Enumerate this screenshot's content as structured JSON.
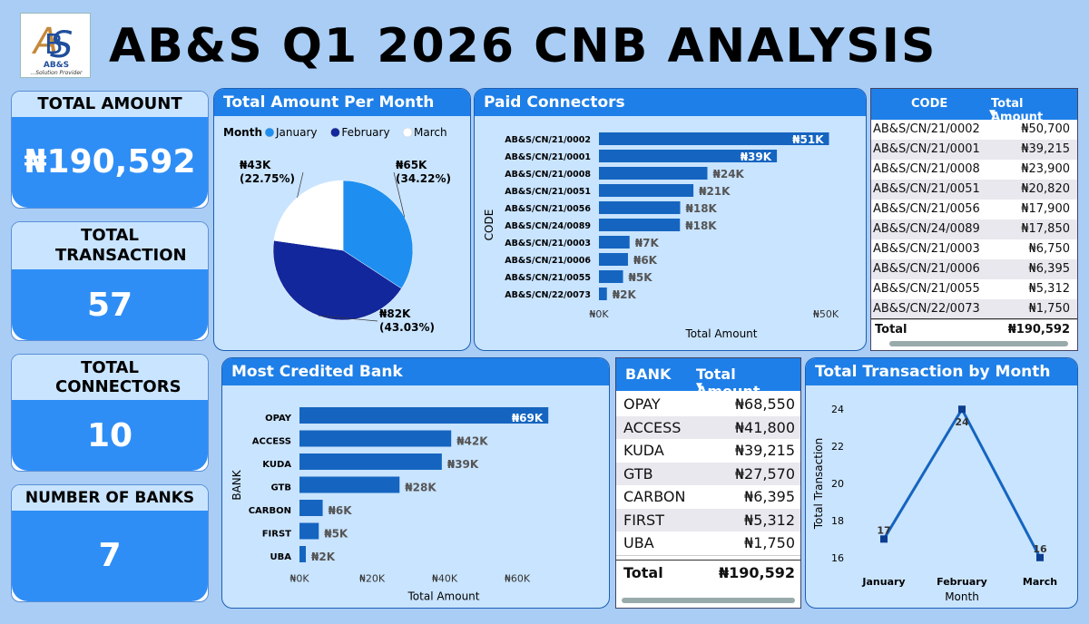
{
  "header": {
    "title": "AB&S Q1 2026 CNB ANALYSIS",
    "logo_text": "AB&S",
    "logo_tagline": "...Solution Provider"
  },
  "kpis": [
    {
      "label": "TOTAL AMOUNT",
      "value": "₦190,592"
    },
    {
      "label": "TOTAL TRANSACTION",
      "value": "57"
    },
    {
      "label": "TOTAL CONNECTORS",
      "value": "10"
    },
    {
      "label": "NUMBER OF BANKS",
      "value": "7"
    }
  ],
  "colors": {
    "january": "#1e8ff0",
    "february": "#13279c",
    "march": "#ffffff",
    "bar": "#1565c0",
    "accent": "#1e7fe8"
  },
  "chart_data": [
    {
      "type": "pie",
      "title": "Total Amount Per Month",
      "legend_title": "Month",
      "categories": [
        "January",
        "February",
        "March"
      ],
      "values": [
        65223,
        82011,
        43358
      ],
      "data_labels": [
        "₦65K (34.22%)",
        "₦82K (43.03%)",
        "₦43K (22.75%)"
      ],
      "legend_position": "top-left"
    },
    {
      "type": "bar",
      "orientation": "horizontal",
      "title": "Paid Connectors",
      "ylabel": "CODE",
      "xlabel": "Total Amount",
      "categories": [
        "AB&S/CN/21/0002",
        "AB&S/CN/21/0001",
        "AB&S/CN/21/0008",
        "AB&S/CN/21/0051",
        "AB&S/CN/21/0056",
        "AB&S/CN/24/0089",
        "AB&S/CN/21/0003",
        "AB&S/CN/21/0006",
        "AB&S/CN/21/0055",
        "AB&S/CN/22/0073"
      ],
      "values": [
        50700,
        39215,
        23900,
        20820,
        17900,
        17850,
        6750,
        6395,
        5312,
        1750
      ],
      "data_labels": [
        "₦51K",
        "₦39K",
        "₦24K",
        "₦21K",
        "₦18K",
        "₦18K",
        "₦7K",
        "₦6K",
        "₦5K",
        "₦2K"
      ],
      "xticks": [
        "₦0K",
        "₦50K"
      ],
      "xlim": [
        0,
        55000
      ]
    },
    {
      "type": "bar",
      "orientation": "horizontal",
      "title": "Most Credited Bank",
      "ylabel": "BANK",
      "xlabel": "Total Amount",
      "categories": [
        "OPAY",
        "ACCESS",
        "KUDA",
        "GTB",
        "CARBON",
        "FIRST",
        "UBA"
      ],
      "values": [
        68550,
        41800,
        39215,
        27570,
        6395,
        5312,
        1750
      ],
      "data_labels": [
        "₦69K",
        "₦42K",
        "₦39K",
        "₦28K",
        "₦6K",
        "₦5K",
        "₦2K"
      ],
      "xticks": [
        "₦0K",
        "₦20K",
        "₦40K",
        "₦60K"
      ],
      "xlim": [
        0,
        80000
      ]
    },
    {
      "type": "line",
      "title": "Total Transaction by Month",
      "xlabel": "Month",
      "ylabel": "Total Transaction",
      "categories": [
        "January",
        "February",
        "March"
      ],
      "values": [
        17,
        24,
        16
      ],
      "yticks": [
        "16",
        "18",
        "20",
        "22",
        "24"
      ],
      "ylim": [
        15.5,
        24.5
      ]
    }
  ],
  "connector_table": {
    "headers": [
      "CODE",
      "Total Amount"
    ],
    "rows": [
      [
        "AB&S/CN/21/0002",
        "₦50,700"
      ],
      [
        "AB&S/CN/21/0001",
        "₦39,215"
      ],
      [
        "AB&S/CN/21/0008",
        "₦23,900"
      ],
      [
        "AB&S/CN/21/0051",
        "₦20,820"
      ],
      [
        "AB&S/CN/21/0056",
        "₦17,900"
      ],
      [
        "AB&S/CN/24/0089",
        "₦17,850"
      ],
      [
        "AB&S/CN/21/0003",
        "₦6,750"
      ],
      [
        "AB&S/CN/21/0006",
        "₦6,395"
      ],
      [
        "AB&S/CN/21/0055",
        "₦5,312"
      ],
      [
        "AB&S/CN/22/0073",
        "₦1,750"
      ]
    ],
    "total_label": "Total",
    "total_value": "₦190,592"
  },
  "bank_table": {
    "headers": [
      "BANK",
      "Total Amount"
    ],
    "rows": [
      [
        "OPAY",
        "₦68,550"
      ],
      [
        "ACCESS",
        "₦41,800"
      ],
      [
        "KUDA",
        "₦39,215"
      ],
      [
        "GTB",
        "₦27,570"
      ],
      [
        "CARBON",
        "₦6,395"
      ],
      [
        "FIRST",
        "₦5,312"
      ],
      [
        "UBA",
        "₦1,750"
      ]
    ],
    "total_label": "Total",
    "total_value": "₦190,592"
  }
}
